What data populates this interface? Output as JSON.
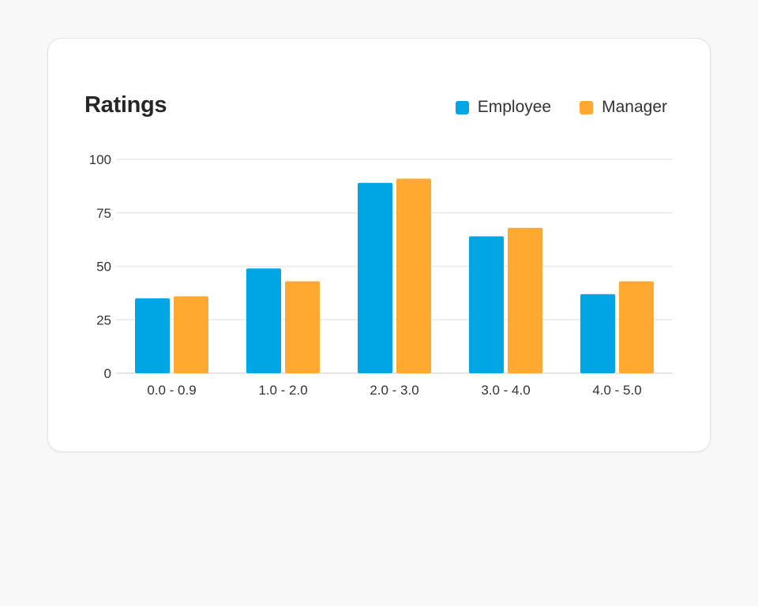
{
  "card": {
    "title": "Ratings"
  },
  "chart_data": {
    "type": "bar",
    "title": "Ratings",
    "xlabel": "",
    "ylabel": "",
    "categories": [
      "0.0 - 0.9",
      "1.0 - 2.0",
      "2.0 - 3.0",
      "3.0 - 4.0",
      "4.0 - 5.0"
    ],
    "series": [
      {
        "name": "Employee",
        "color": "#00a5e3",
        "values": [
          35,
          49,
          89,
          64,
          37
        ]
      },
      {
        "name": "Manager",
        "color": "#ffa931",
        "values": [
          36,
          43,
          91,
          68,
          43
        ]
      }
    ],
    "ylim": [
      0,
      100
    ],
    "yticks": [
      0,
      25,
      50,
      75,
      100
    ],
    "grid": true,
    "legend_position": "top-right"
  }
}
